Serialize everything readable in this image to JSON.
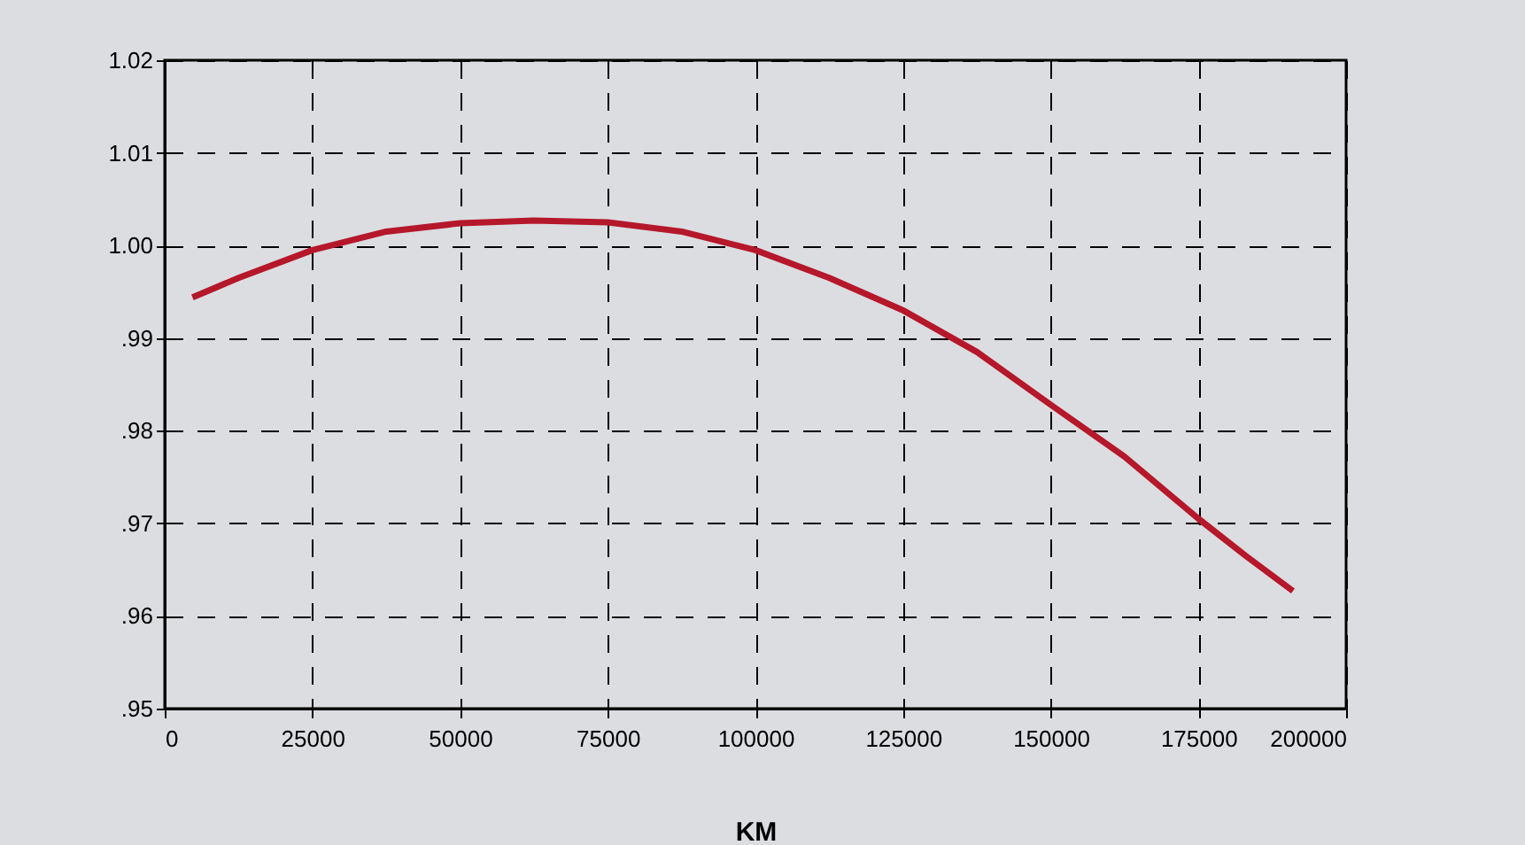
{
  "chart_data": {
    "type": "line",
    "xlabel": "KM",
    "x": [
      4700,
      12500,
      25000,
      37500,
      50000,
      62500,
      75000,
      87500,
      100000,
      112500,
      125000,
      137500,
      150000,
      162500,
      175000,
      183000,
      191000
    ],
    "series": [
      {
        "color": "#b5172b",
        "values": [
          0.9944,
          0.9965,
          0.9995,
          1.0015,
          1.0024,
          1.0027,
          1.0025,
          1.0015,
          0.9995,
          0.9965,
          0.993,
          0.9885,
          0.9828,
          0.9772,
          0.9705,
          0.9665,
          0.9627
        ]
      }
    ],
    "xlim": [
      0,
      200000
    ],
    "xticks": [
      0,
      25000,
      50000,
      75000,
      100000,
      125000,
      150000,
      175000,
      200000
    ],
    "ylim": [
      0.95,
      1.02
    ],
    "yticks": [
      {
        "value": 0.95,
        "label": ".95"
      },
      {
        "value": 0.96,
        "label": ".96"
      },
      {
        "value": 0.97,
        "label": ".97"
      },
      {
        "value": 0.98,
        "label": ".98"
      },
      {
        "value": 0.99,
        "label": ".99"
      },
      {
        "value": 1.0,
        "label": "1.00"
      },
      {
        "value": 1.01,
        "label": "1.01"
      },
      {
        "value": 1.02,
        "label": "1.02"
      }
    ],
    "grid": true,
    "line_style": "solid"
  }
}
